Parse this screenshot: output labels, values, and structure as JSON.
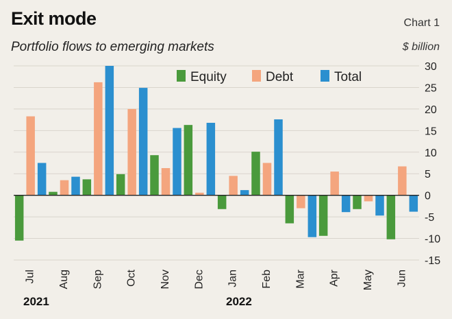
{
  "header": {
    "title": "Exit mode",
    "subtitle": "Portfolio flows to emerging markets",
    "chart_label": "Chart 1",
    "unit_label": "$ billion"
  },
  "colors": {
    "equity": "#4a9a3c",
    "debt": "#f4a57e",
    "total": "#2b8fcf",
    "grid": "#d9d4cc",
    "axis": "#222222"
  },
  "chart_data": {
    "type": "bar",
    "categories": [
      "Jul",
      "Aug",
      "Sep",
      "Oct",
      "Nov",
      "Dec",
      "Jan",
      "Feb",
      "Mar",
      "Apr",
      "May",
      "Jun"
    ],
    "year_labels": [
      {
        "label": "2021",
        "category_index": 0
      },
      {
        "label": "2022",
        "category_index": 6
      }
    ],
    "series": [
      {
        "name": "Equity",
        "color_key": "equity",
        "values": [
          -10.5,
          0.8,
          3.7,
          4.9,
          9.3,
          16.3,
          -3.2,
          10.1,
          -6.5,
          -9.4,
          -3.2,
          -10.2
        ]
      },
      {
        "name": "Debt",
        "color_key": "debt",
        "values": [
          18.3,
          3.5,
          26.2,
          20.0,
          6.3,
          0.6,
          4.5,
          7.5,
          -3.0,
          5.5,
          -1.4,
          6.7
        ]
      },
      {
        "name": "Total",
        "color_key": "total",
        "values": [
          7.5,
          4.3,
          30.0,
          24.9,
          15.6,
          16.8,
          1.2,
          17.6,
          -9.7,
          -3.9,
          -4.7,
          -3.8
        ]
      }
    ],
    "ylim": [
      -15,
      30
    ],
    "yticks": [
      30,
      25,
      20,
      15,
      10,
      5,
      0,
      -5,
      -10,
      -15
    ],
    "ylabel": "$ billion",
    "y_axis_position": "right",
    "grid": true,
    "legend_position": "top-center"
  }
}
